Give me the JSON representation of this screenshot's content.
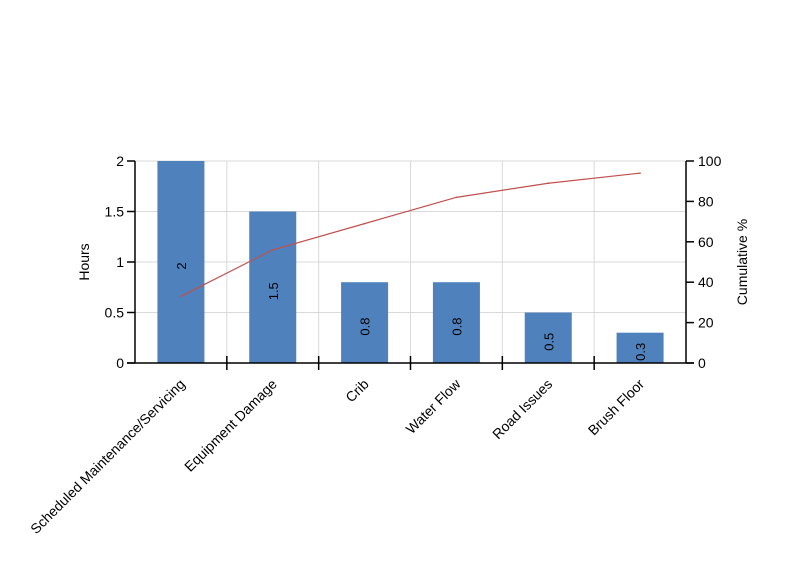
{
  "chart_data": {
    "type": "bar",
    "title": "",
    "xlabel": "",
    "ylabel": "Hours",
    "y2label": "Cumulative %",
    "ylim": [
      0,
      2
    ],
    "y2lim": [
      0,
      100
    ],
    "y_ticks": [
      "0",
      "0.5",
      "1",
      "1.5",
      "2"
    ],
    "y2_ticks": [
      "0",
      "20",
      "40",
      "60",
      "80",
      "100"
    ],
    "grid": true,
    "legend": "none",
    "categories": [
      "Scheduled Maintenance/Servicing",
      "Equipment Damage",
      "Crib",
      "Water Flow",
      "Road Issues",
      "Brush Floor"
    ],
    "series": [
      {
        "type": "bar",
        "values": [
          2,
          1.5,
          0.8,
          0.8,
          0.5,
          0.3
        ],
        "data_labels": [
          "2",
          "1.5",
          "0.8",
          "0.8",
          "0.5",
          "0.3"
        ],
        "color": "#4f81bd"
      },
      {
        "type": "line",
        "axis": "right",
        "values": [
          33,
          56,
          69,
          82,
          89,
          94
        ],
        "color": "#c0504d"
      }
    ]
  }
}
